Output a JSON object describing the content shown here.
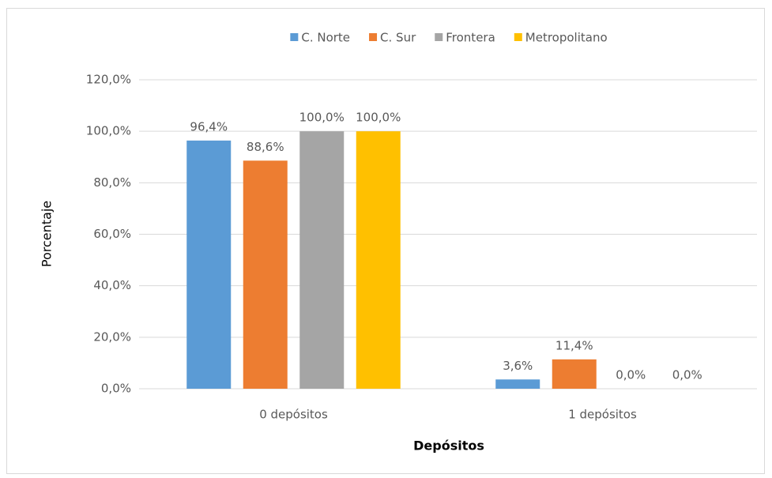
{
  "chart_data": {
    "type": "bar",
    "x_label": "Depósitos",
    "y_label": "Porcentaje",
    "categories": [
      "0 depósitos",
      "1 depósitos"
    ],
    "series": [
      {
        "name": "C. Norte",
        "color": "#5b9bd5",
        "values": [
          96.4,
          3.6
        ],
        "value_labels": [
          "96,4%",
          "3,6%"
        ]
      },
      {
        "name": "C. Sur",
        "color": "#ed7d31",
        "values": [
          88.6,
          11.4
        ],
        "value_labels": [
          "88,6%",
          "11,4%"
        ]
      },
      {
        "name": "Frontera",
        "color": "#a5a5a5",
        "values": [
          100,
          0
        ],
        "value_labels": [
          "100,0%",
          "0,0%"
        ]
      },
      {
        "name": "Metropolitano",
        "color": "#ffc000",
        "values": [
          100,
          0
        ],
        "value_labels": [
          "100,0%",
          "0,0%"
        ]
      }
    ],
    "ylim": [
      0,
      120
    ],
    "yticks": [
      {
        "value": 0,
        "label": "0,0%"
      },
      {
        "value": 20,
        "label": "20,0%"
      },
      {
        "value": 40,
        "label": "40,0%"
      },
      {
        "value": 60,
        "label": "60,0%"
      },
      {
        "value": 80,
        "label": "80,0%"
      },
      {
        "value": 100,
        "label": "100,0%"
      },
      {
        "value": 120,
        "label": "120,0%"
      }
    ],
    "grid": true,
    "legend": "top"
  }
}
